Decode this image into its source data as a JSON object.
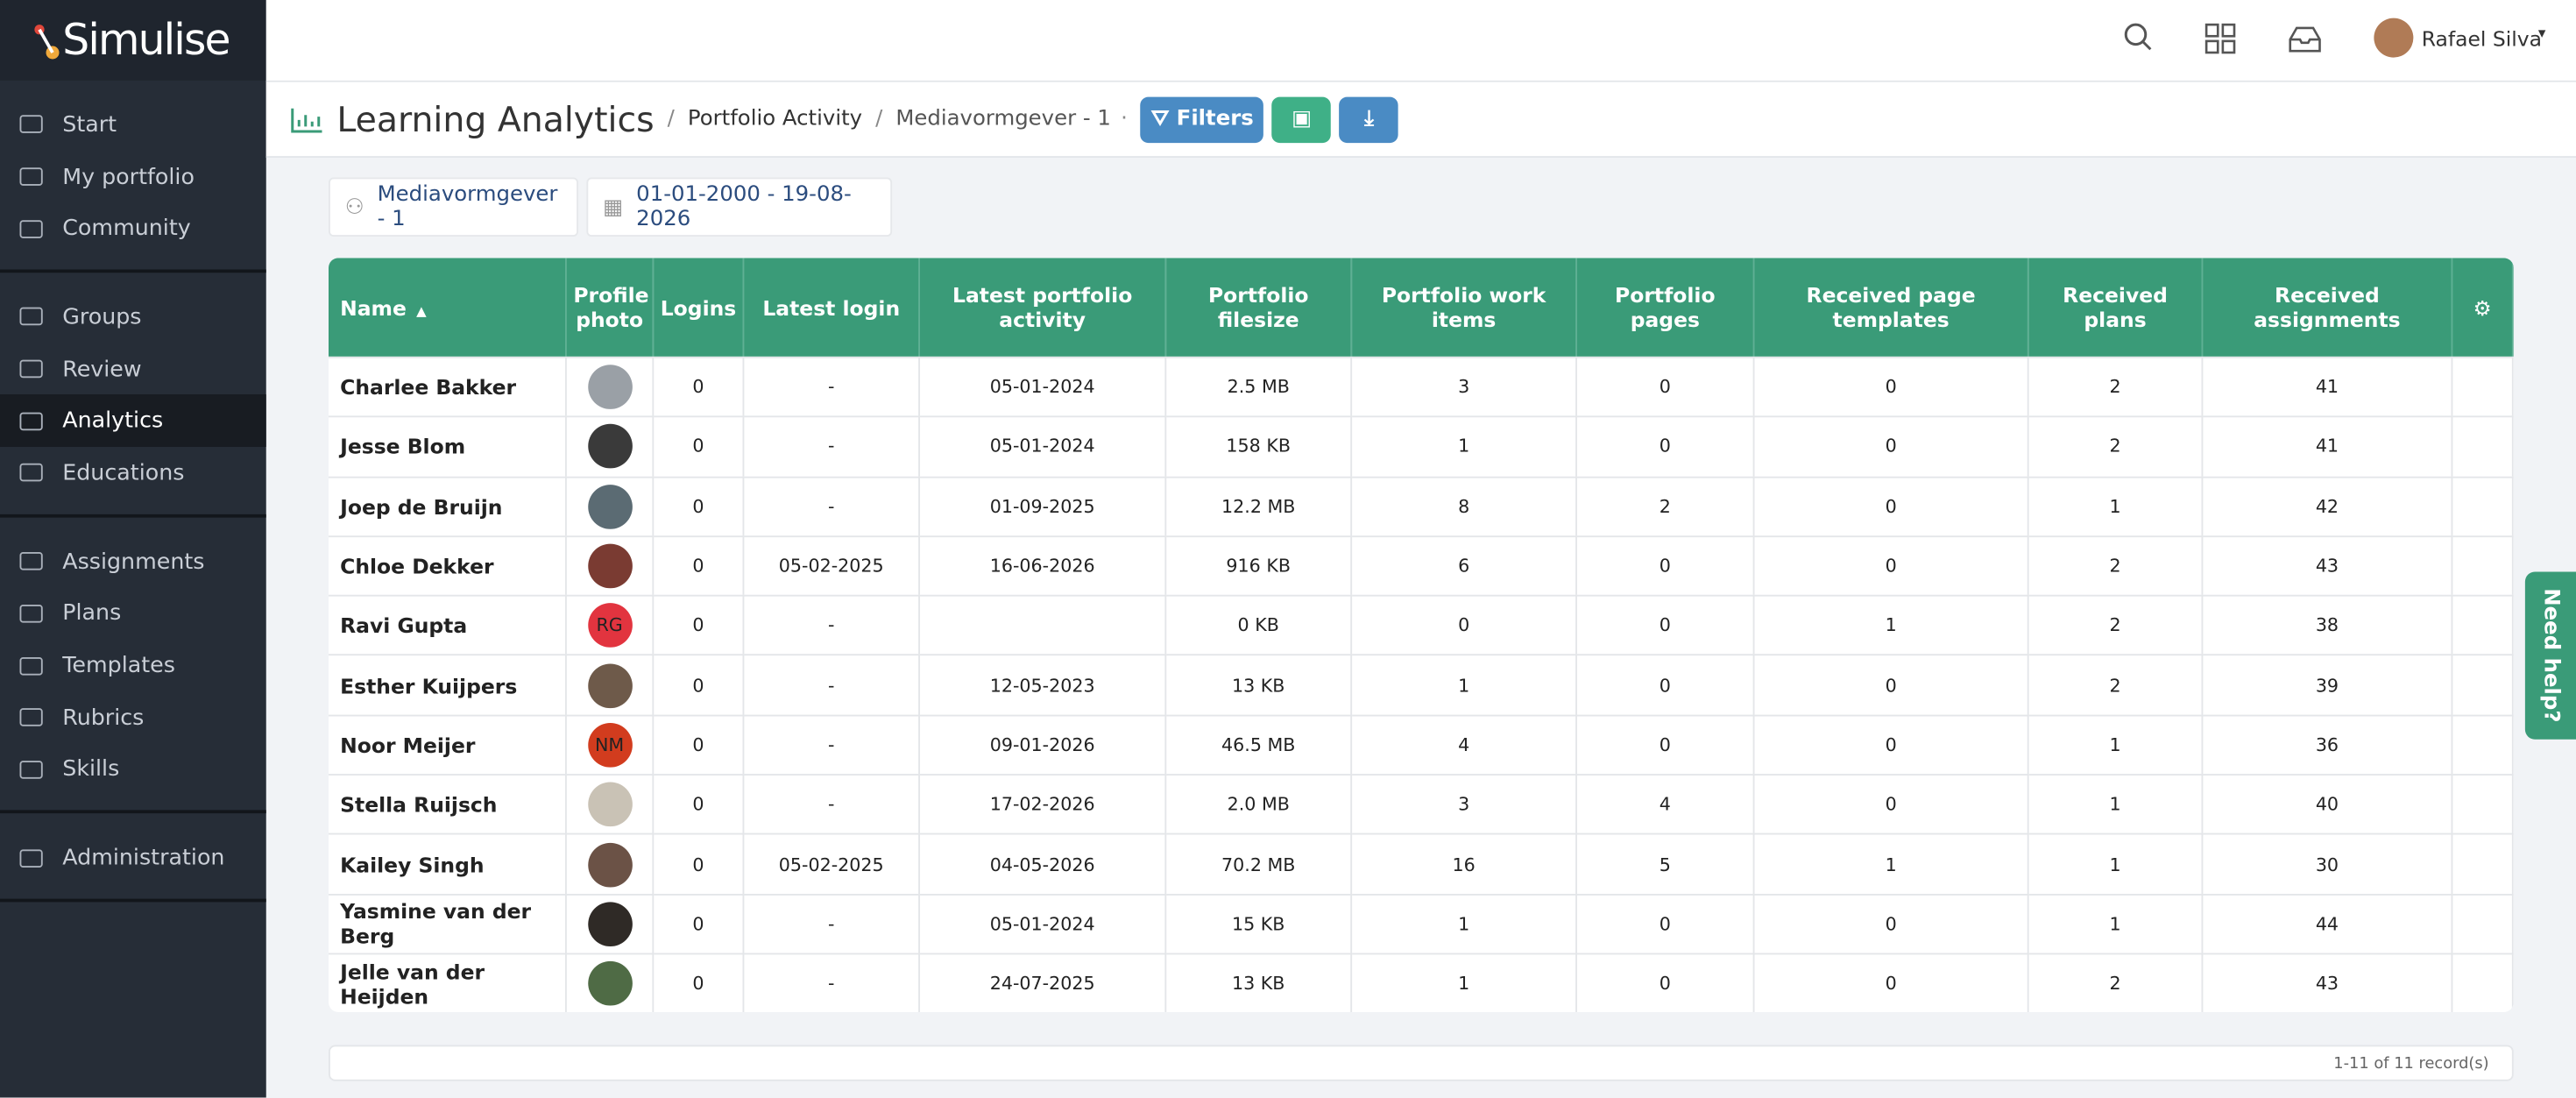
{
  "brand": "Simulise",
  "user": "Rafael Silva",
  "nav": [
    [
      "Start",
      "My portfolio",
      "Community"
    ],
    [
      "Groups",
      "Review",
      "Analytics",
      "Educations"
    ],
    [
      "Assignments",
      "Plans",
      "Templates",
      "Rubrics",
      "Skills"
    ],
    [
      "Administration"
    ]
  ],
  "active_nav": [
    1,
    2
  ],
  "page_title": "Learning Analytics",
  "breadcrumb": [
    "Portfolio Activity",
    "Mediavormgever - 1"
  ],
  "filters_button": "Filters",
  "filter_chips": [
    "Mediavormgever - 1",
    "01-01-2000 - 19-08-2026"
  ],
  "table": {
    "columns": [
      "Name",
      "Profile photo",
      "Logins",
      "Latest login",
      "Latest portfolio activity",
      "Portfolio filesize",
      "Portfolio work items",
      "Portfolio pages",
      "Received page templates",
      "Received plans",
      "Received assignments"
    ],
    "sorted_column": 0,
    "rows": [
      {
        "name": "Charlee Bakker",
        "avatar": "#9aa0a6",
        "cells": [
          "0",
          "-",
          "05-01-2024",
          "2.5 MB",
          "3",
          "0",
          "0",
          "2",
          "41"
        ]
      },
      {
        "name": "Jesse Blom",
        "avatar": "#3a3a3a",
        "cells": [
          "0",
          "-",
          "05-01-2024",
          "158 KB",
          "1",
          "0",
          "0",
          "2",
          "41"
        ]
      },
      {
        "name": "Joep de Bruijn",
        "avatar": "#5b6b73",
        "cells": [
          "0",
          "-",
          "01-09-2025",
          "12.2 MB",
          "8",
          "2",
          "0",
          "1",
          "42"
        ]
      },
      {
        "name": "Chloe Dekker",
        "avatar": "#7a3b32",
        "cells": [
          "0",
          "05-02-2025",
          "16-06-2026",
          "916 KB",
          "6",
          "0",
          "0",
          "2",
          "43"
        ]
      },
      {
        "name": "Ravi Gupta",
        "avatar": "#e2343f",
        "initials": "RG",
        "cells": [
          "0",
          "-",
          null,
          "0 KB",
          "0",
          "0",
          "1",
          "2",
          "38"
        ]
      },
      {
        "name": "Esther Kuijpers",
        "avatar": "#6e5a4a",
        "cells": [
          "0",
          "-",
          "12-05-2023",
          "13 KB",
          "1",
          "0",
          "0",
          "2",
          "39"
        ]
      },
      {
        "name": "Noor Meijer",
        "avatar": "#d23c1e",
        "initials": "NM",
        "cells": [
          "0",
          "-",
          "09-01-2026",
          "46.5 MB",
          "4",
          "0",
          "0",
          "1",
          "36"
        ]
      },
      {
        "name": "Stella Ruijsch",
        "avatar": "#c9c2b5",
        "cells": [
          "0",
          "-",
          "17-02-2026",
          "2.0 MB",
          "3",
          "4",
          "0",
          "1",
          "40"
        ]
      },
      {
        "name": "Kailey Singh",
        "avatar": "#6b5246",
        "cells": [
          "0",
          "05-02-2025",
          "04-05-2026",
          "70.2 MB",
          "16",
          "5",
          "1",
          "1",
          "30"
        ]
      },
      {
        "name": "Yasmine van der Berg",
        "avatar": "#2f2a26",
        "cells": [
          "0",
          "-",
          "05-01-2024",
          "15 KB",
          "1",
          "0",
          "0",
          "1",
          "44"
        ]
      },
      {
        "name": "Jelle van der Heijden",
        "avatar": "#4f6b45",
        "cells": [
          "0",
          "-",
          "24-07-2025",
          "13 KB",
          "1",
          "0",
          "0",
          "2",
          "43"
        ]
      }
    ]
  },
  "footer": "1-11 of 11 record(s)",
  "help": "Need help?"
}
